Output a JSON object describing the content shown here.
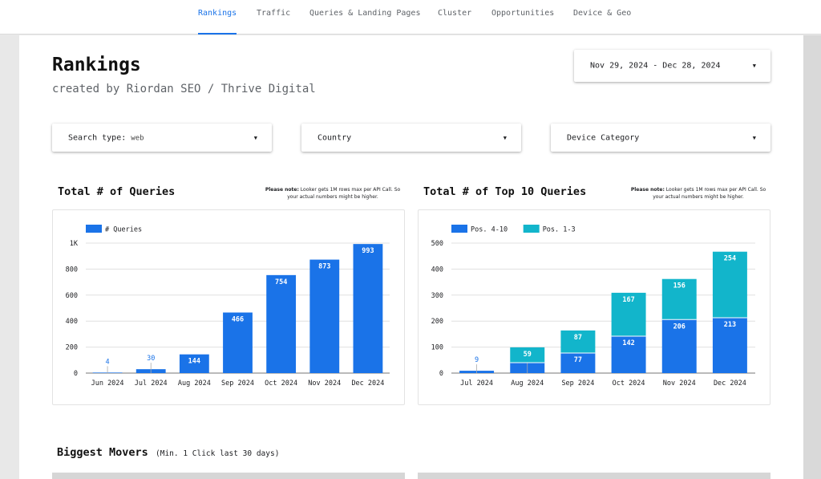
{
  "nav": {
    "tabs": [
      {
        "label": "Rankings",
        "active": true
      },
      {
        "label": "Traffic",
        "active": false
      },
      {
        "label": "Queries & Landing Pages",
        "active": false
      },
      {
        "label": "Cluster",
        "active": false
      },
      {
        "label": "Opportunities",
        "active": false
      },
      {
        "label": "Device & Geo",
        "active": false
      }
    ]
  },
  "header": {
    "title": "Rankings",
    "subtitle": "created by Riordan SEO / Thrive Digital"
  },
  "date_range": {
    "value": "Nov 29, 2024 - Dec 28, 2024"
  },
  "filters": {
    "search_type_label": "Search type:",
    "search_type_value": "web",
    "country_label": "Country",
    "device_label": "Device Category"
  },
  "note": {
    "bold": "Please note:",
    "text": "Looker gets 1M rows max per API Call. So your actual numbers might be higher."
  },
  "colors": {
    "blue": "#1a73e8",
    "teal": "#12b5cb",
    "accent": "#1a73e8"
  },
  "chart_data": [
    {
      "type": "bar",
      "title": "Total # of Queries",
      "categories": [
        "Jun 2024",
        "Jul 2024",
        "Aug 2024",
        "Sep 2024",
        "Oct 2024",
        "Nov 2024",
        "Dec 2024"
      ],
      "series": [
        {
          "name": "# Queries",
          "values": [
            4,
            30,
            144,
            466,
            754,
            873,
            993
          ]
        }
      ],
      "yticks": [
        "0",
        "200",
        "400",
        "600",
        "800",
        "1K"
      ],
      "ylim": [
        0,
        1000
      ],
      "legend": "top-left",
      "grid": true
    },
    {
      "type": "bar",
      "stacked": true,
      "title": "Total # of Top 10 Queries",
      "categories": [
        "Jul 2024",
        "Aug 2024",
        "Sep 2024",
        "Oct 2024",
        "Nov 2024",
        "Dec 2024"
      ],
      "series": [
        {
          "name": "Pos. 4-10",
          "values": [
            9,
            40,
            77,
            142,
            206,
            213
          ]
        },
        {
          "name": "Pos. 1-3",
          "values": [
            0,
            59,
            87,
            167,
            156,
            254
          ]
        }
      ],
      "yticks": [
        "0",
        "100",
        "200",
        "300",
        "400",
        "500"
      ],
      "ylim": [
        0,
        500
      ],
      "legend": "top-left",
      "grid": true
    }
  ],
  "movers": {
    "title": "Biggest Movers",
    "subtitle": "(Min. 1 Click last 30 days)"
  }
}
